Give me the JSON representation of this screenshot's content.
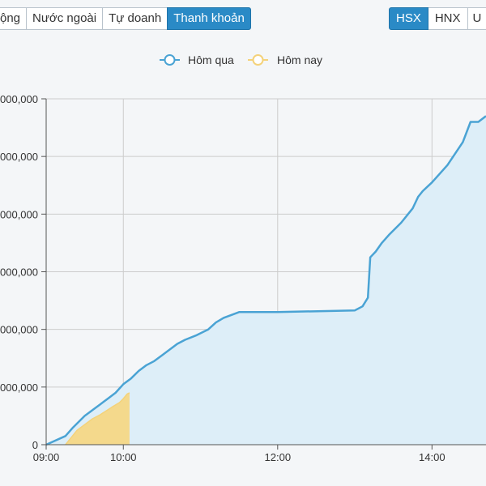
{
  "tabs": [
    {
      "label": "ộng",
      "active": false
    },
    {
      "label": "Nước ngoài",
      "active": false
    },
    {
      "label": "Tự doanh",
      "active": false
    },
    {
      "label": "Thanh khoản",
      "active": true
    }
  ],
  "exchanges": [
    {
      "label": "HSX",
      "active": true
    },
    {
      "label": "HNX",
      "active": false
    },
    {
      "label": "U",
      "active": false
    }
  ],
  "colors": {
    "accent": "#2a8ac6",
    "yesterday_line": "#4aa3d4",
    "yesterday_fill": "#ddeef8",
    "today_line": "#f4d27a",
    "today_fill": "#f6d680",
    "grid": "#cccccc"
  },
  "chart_data": {
    "type": "area",
    "legend": [
      "Hôm qua",
      "Hôm nay"
    ],
    "legend_position": "top-center",
    "grid": true,
    "y_tick_labels": [
      "0",
      "000,000",
      "000,000",
      "000,000",
      "000,000",
      "000,000",
      "000,000"
    ],
    "x_tick_labels": [
      "09:00",
      "10:00",
      "12:00",
      "14:00"
    ],
    "x_tick_hours": [
      9,
      10,
      12,
      14
    ],
    "x_range_hours": [
      9,
      14.7
    ],
    "y_range": [
      0,
      6
    ],
    "series": [
      {
        "name": "Hôm qua",
        "color": "#4aa3d4",
        "points": [
          [
            9.0,
            0.0
          ],
          [
            9.25,
            0.15
          ],
          [
            9.35,
            0.3
          ],
          [
            9.5,
            0.5
          ],
          [
            9.6,
            0.6
          ],
          [
            9.7,
            0.7
          ],
          [
            9.8,
            0.8
          ],
          [
            9.9,
            0.9
          ],
          [
            10.0,
            1.05
          ],
          [
            10.1,
            1.15
          ],
          [
            10.2,
            1.28
          ],
          [
            10.3,
            1.38
          ],
          [
            10.4,
            1.45
          ],
          [
            10.5,
            1.55
          ],
          [
            10.6,
            1.65
          ],
          [
            10.7,
            1.75
          ],
          [
            10.8,
            1.82
          ],
          [
            10.95,
            1.9
          ],
          [
            11.1,
            2.0
          ],
          [
            11.2,
            2.12
          ],
          [
            11.3,
            2.2
          ],
          [
            11.5,
            2.3
          ],
          [
            12.0,
            2.3
          ],
          [
            13.0,
            2.33
          ],
          [
            13.1,
            2.4
          ],
          [
            13.17,
            2.55
          ],
          [
            13.2,
            3.25
          ],
          [
            13.27,
            3.35
          ],
          [
            13.35,
            3.5
          ],
          [
            13.45,
            3.65
          ],
          [
            13.6,
            3.85
          ],
          [
            13.75,
            4.1
          ],
          [
            13.82,
            4.3
          ],
          [
            13.88,
            4.4
          ],
          [
            14.0,
            4.55
          ],
          [
            14.2,
            4.85
          ],
          [
            14.4,
            5.25
          ],
          [
            14.5,
            5.6
          ],
          [
            14.6,
            5.6
          ],
          [
            14.7,
            5.7
          ]
        ]
      },
      {
        "name": "Hôm nay",
        "color": "#f4d27a",
        "points": [
          [
            9.25,
            0.0
          ],
          [
            9.4,
            0.25
          ],
          [
            9.6,
            0.45
          ],
          [
            9.7,
            0.52
          ],
          [
            9.85,
            0.65
          ],
          [
            9.95,
            0.73
          ],
          [
            10.0,
            0.8
          ],
          [
            10.05,
            0.88
          ],
          [
            10.08,
            0.9
          ]
        ]
      }
    ]
  }
}
